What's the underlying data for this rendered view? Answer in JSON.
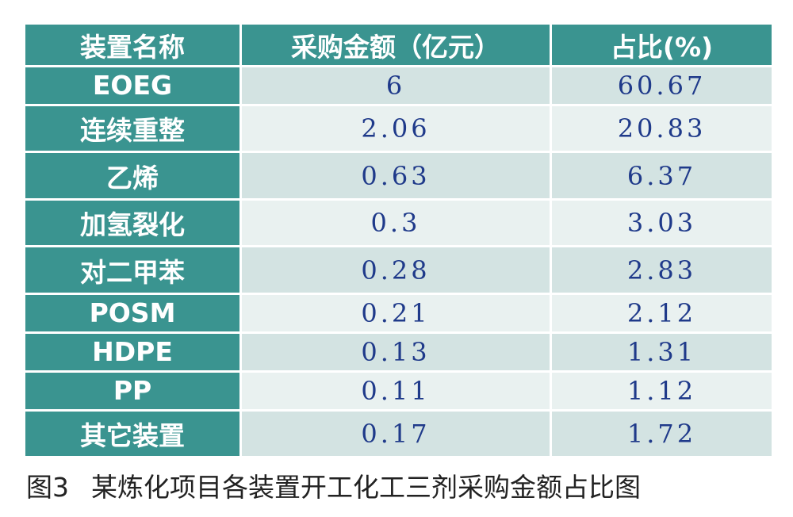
{
  "table": {
    "headers": [
      "装置名称",
      "采购金额（亿元）",
      "占比(%)"
    ],
    "rows": [
      {
        "name": "EOEG",
        "amount": "6",
        "share": "60.67"
      },
      {
        "name": "连续重整",
        "amount": "2.06",
        "share": "20.83"
      },
      {
        "name": "乙烯",
        "amount": "0.63",
        "share": "6.37"
      },
      {
        "name": "加氢裂化",
        "amount": "0.3",
        "share": "3.03"
      },
      {
        "name": "对二甲苯",
        "amount": "0.28",
        "share": "2.83"
      },
      {
        "name": "POSM",
        "amount": "0.21",
        "share": "2.12"
      },
      {
        "name": "HDPE",
        "amount": "0.13",
        "share": "1.31"
      },
      {
        "name": "PP",
        "amount": "0.11",
        "share": "1.12"
      },
      {
        "name": "其它装置",
        "amount": "0.17",
        "share": "1.72"
      }
    ]
  },
  "caption": {
    "figure_no": "图3",
    "text": "某炼化项目各装置开工化工三剂采购金额占比图"
  },
  "colors": {
    "header_bg": "#3a9490",
    "header_text": "#ffffff",
    "value_text": "#1f3a8a",
    "row_light": "#e9f1f0",
    "row_dark": "#d3e3e2"
  }
}
